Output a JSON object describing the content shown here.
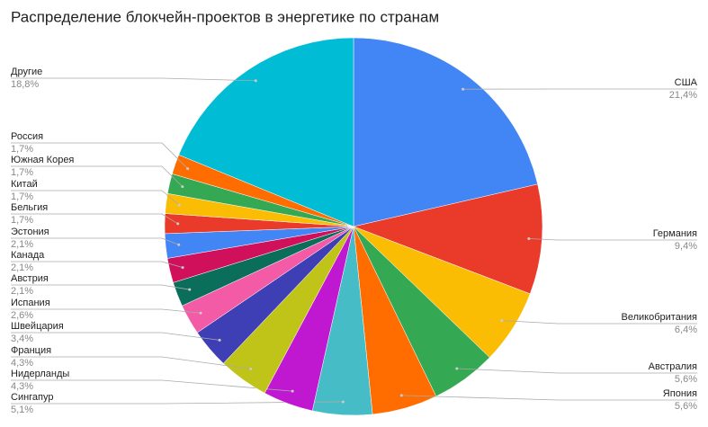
{
  "chart_data": {
    "type": "pie",
    "title": "Распределение блокчейн-проектов в энергетике по странам",
    "categories": [
      "США",
      "Германия",
      "Великобритания",
      "Австралия",
      "Япония",
      "Сингапур",
      "Нидерланды",
      "Франция",
      "Швейцария",
      "Испания",
      "Австрия",
      "Канада",
      "Эстония",
      "Бельгия",
      "Китай",
      "Южная Корея",
      "Россия",
      "Другие"
    ],
    "values": [
      21.4,
      9.4,
      6.4,
      5.6,
      5.6,
      5.1,
      4.3,
      4.3,
      3.4,
      2.6,
      2.1,
      2.1,
      2.1,
      1.7,
      1.7,
      1.7,
      1.7,
      18.8
    ],
    "value_labels": [
      "21,4%",
      "9,4%",
      "6,4%",
      "5,6%",
      "5,6%",
      "5,1%",
      "4,3%",
      "4,3%",
      "3,4%",
      "2,6%",
      "2,1%",
      "2,1%",
      "2,1%",
      "1,7%",
      "1,7%",
      "1,7%",
      "1,7%",
      "18,8%"
    ],
    "colors": [
      "#4285f4",
      "#ea3a2a",
      "#fbbc04",
      "#34a853",
      "#ff6d01",
      "#46bdc6",
      "#c018d0",
      "#c0c418",
      "#3f3fb5",
      "#f35ba6",
      "#0b6e5b",
      "#d0105b",
      "#4285f4",
      "#ea3a2a",
      "#fbbc04",
      "#34a853",
      "#ff6d01",
      "#00bcd4"
    ]
  }
}
